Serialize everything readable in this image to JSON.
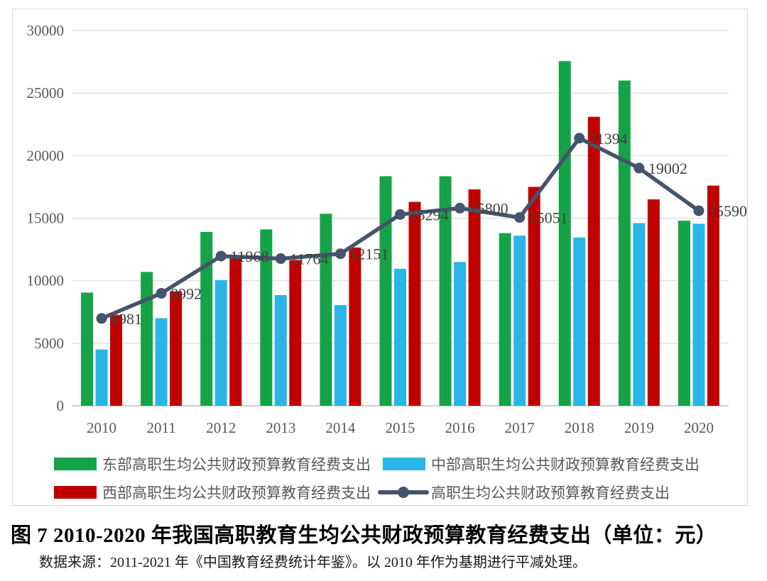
{
  "caption": "图 7 2010-2020 年我国高职教育生均公共财政预算教育经费支出（单位：元）",
  "source": "数据来源：2011-2021 年《中国教育经费统计年鉴》。以 2010 年作为基期进行平减处理。",
  "colors": {
    "east_green": "#16a348",
    "central_blue": "#29b5e8",
    "west_red": "#c00000",
    "line_slate": "#44546a",
    "gridline": "#d9d9d9",
    "axis_line": "#bfbfbf",
    "axis_text": "#595959",
    "data_label_text": "#404040"
  },
  "chart_data": {
    "type": "bar",
    "subtype": "grouped-bars-with-line-overlay",
    "categories": [
      "2010",
      "2011",
      "2012",
      "2013",
      "2014",
      "2015",
      "2016",
      "2017",
      "2018",
      "2019",
      "2020"
    ],
    "series": [
      {
        "name": "东部高职生均公共财政预算教育经费支出",
        "type": "bar",
        "color": "#16a348",
        "values": [
          9050,
          10700,
          13900,
          14100,
          15350,
          18350,
          18350,
          13800,
          27550,
          26000,
          14800
        ]
      },
      {
        "name": "中部高职生均公共财政预算教育经费支出",
        "type": "bar",
        "color": "#29b5e8",
        "values": [
          4500,
          7000,
          10050,
          8850,
          8050,
          10950,
          11500,
          13600,
          13450,
          14600,
          14550
        ]
      },
      {
        "name": "西部高职生均公共财政预算教育经费支出",
        "type": "bar",
        "color": "#c00000",
        "values": [
          7250,
          9150,
          11850,
          11650,
          12650,
          16300,
          17300,
          17500,
          23100,
          16500,
          17600
        ]
      },
      {
        "name": "高职生均公共财政预算教育经费支出",
        "type": "line",
        "color": "#44546a",
        "values": [
          6981,
          8992,
          11968,
          11764,
          12151,
          15294,
          15800,
          15051,
          21394,
          19002,
          15590
        ],
        "data_labels": [
          "6981",
          "8992",
          "11968",
          "11764",
          "12151",
          "15294",
          "15800",
          "15051",
          "21394",
          "19002",
          "15590"
        ]
      }
    ],
    "ylabel": "",
    "xlabel": "",
    "ylim": [
      0,
      30000
    ],
    "ytick_step": 5000,
    "yticks": [
      "0",
      "5000",
      "10000",
      "15000",
      "20000",
      "25000",
      "30000"
    ],
    "grid": "horizontal",
    "legend_position": "bottom-two-columns"
  }
}
